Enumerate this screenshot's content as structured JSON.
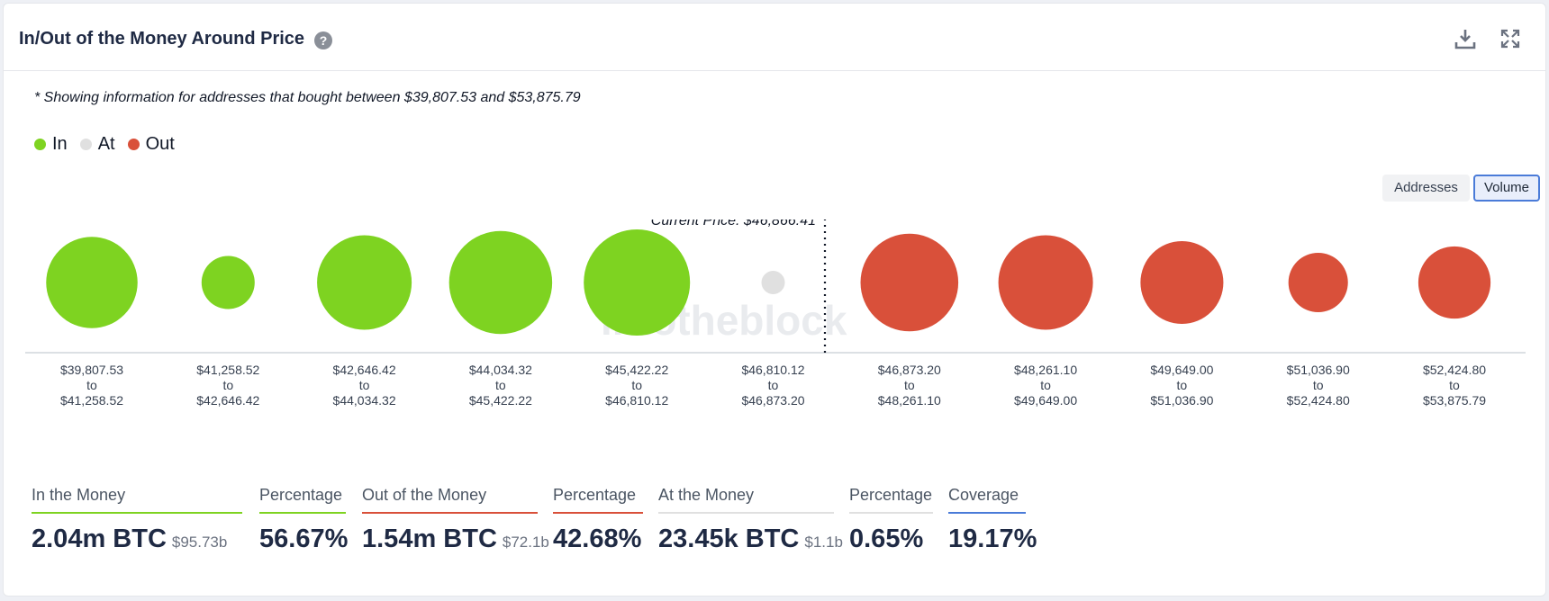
{
  "header": {
    "title": "In/Out of the Money Around Price",
    "help_glyph": "?"
  },
  "icons": {
    "help": "help-icon",
    "download": "download-icon",
    "expand": "expand-icon"
  },
  "note": "* Showing information for addresses that bought between $39,807.53 and $53,875.79",
  "legend": [
    {
      "label": "In",
      "color": "#7ed321"
    },
    {
      "label": "At",
      "color": "#e0e0e0"
    },
    {
      "label": "Out",
      "color": "#d9503a"
    }
  ],
  "toggles": {
    "addresses": "Addresses",
    "volume": "Volume",
    "selected": "Volume"
  },
  "watermark": "intotheblock",
  "chart_data": {
    "type": "scatter",
    "current_price_label": "Current Price: $46,866.41",
    "current_price": 46866.41,
    "buckets": [
      {
        "from": "$39,807.53",
        "to": "$41,258.52",
        "status": "in",
        "relative_size": 0.86
      },
      {
        "from": "$41,258.52",
        "to": "$42,646.42",
        "status": "in",
        "relative_size": 0.5
      },
      {
        "from": "$42,646.42",
        "to": "$44,034.32",
        "status": "in",
        "relative_size": 0.89
      },
      {
        "from": "$44,034.32",
        "to": "$45,422.22",
        "status": "in",
        "relative_size": 0.97
      },
      {
        "from": "$45,422.22",
        "to": "$46,810.12",
        "status": "in",
        "relative_size": 1.0
      },
      {
        "from": "$46,810.12",
        "to": "$46,873.20",
        "status": "at",
        "relative_size": 0.22
      },
      {
        "from": "$46,873.20",
        "to": "$48,261.10",
        "status": "out",
        "relative_size": 0.92
      },
      {
        "from": "$48,261.10",
        "to": "$49,649.00",
        "status": "out",
        "relative_size": 0.89
      },
      {
        "from": "$49,649.00",
        "to": "$51,036.90",
        "status": "out",
        "relative_size": 0.78
      },
      {
        "from": "$51,036.90",
        "to": "$52,424.80",
        "status": "out",
        "relative_size": 0.56
      },
      {
        "from": "$52,424.80",
        "to": "$53,875.79",
        "status": "out",
        "relative_size": 0.68
      }
    ],
    "to_word": "to",
    "colors": {
      "in": "#7ed321",
      "at": "#e0e0e0",
      "out": "#d9503a"
    }
  },
  "stats": {
    "in_money": {
      "label": "In the Money",
      "value": "2.04m BTC",
      "sub": "$95.73b",
      "color": "#7ed321"
    },
    "in_pct": {
      "label": "Percentage",
      "value": "56.67%",
      "color": "#7ed321"
    },
    "out_money": {
      "label": "Out of the Money",
      "value": "1.54m BTC",
      "sub": "$72.1b",
      "color": "#d9503a"
    },
    "out_pct": {
      "label": "Percentage",
      "value": "42.68%",
      "color": "#d9503a"
    },
    "at_money": {
      "label": "At the Money",
      "value": "23.45k BTC",
      "sub": "$1.1b",
      "color": "#e0e0e0"
    },
    "at_pct": {
      "label": "Percentage",
      "value": "0.65%",
      "color": "#e0e0e0"
    },
    "coverage": {
      "label": "Coverage",
      "value": "19.17%",
      "color": "#4a7bd8"
    }
  }
}
